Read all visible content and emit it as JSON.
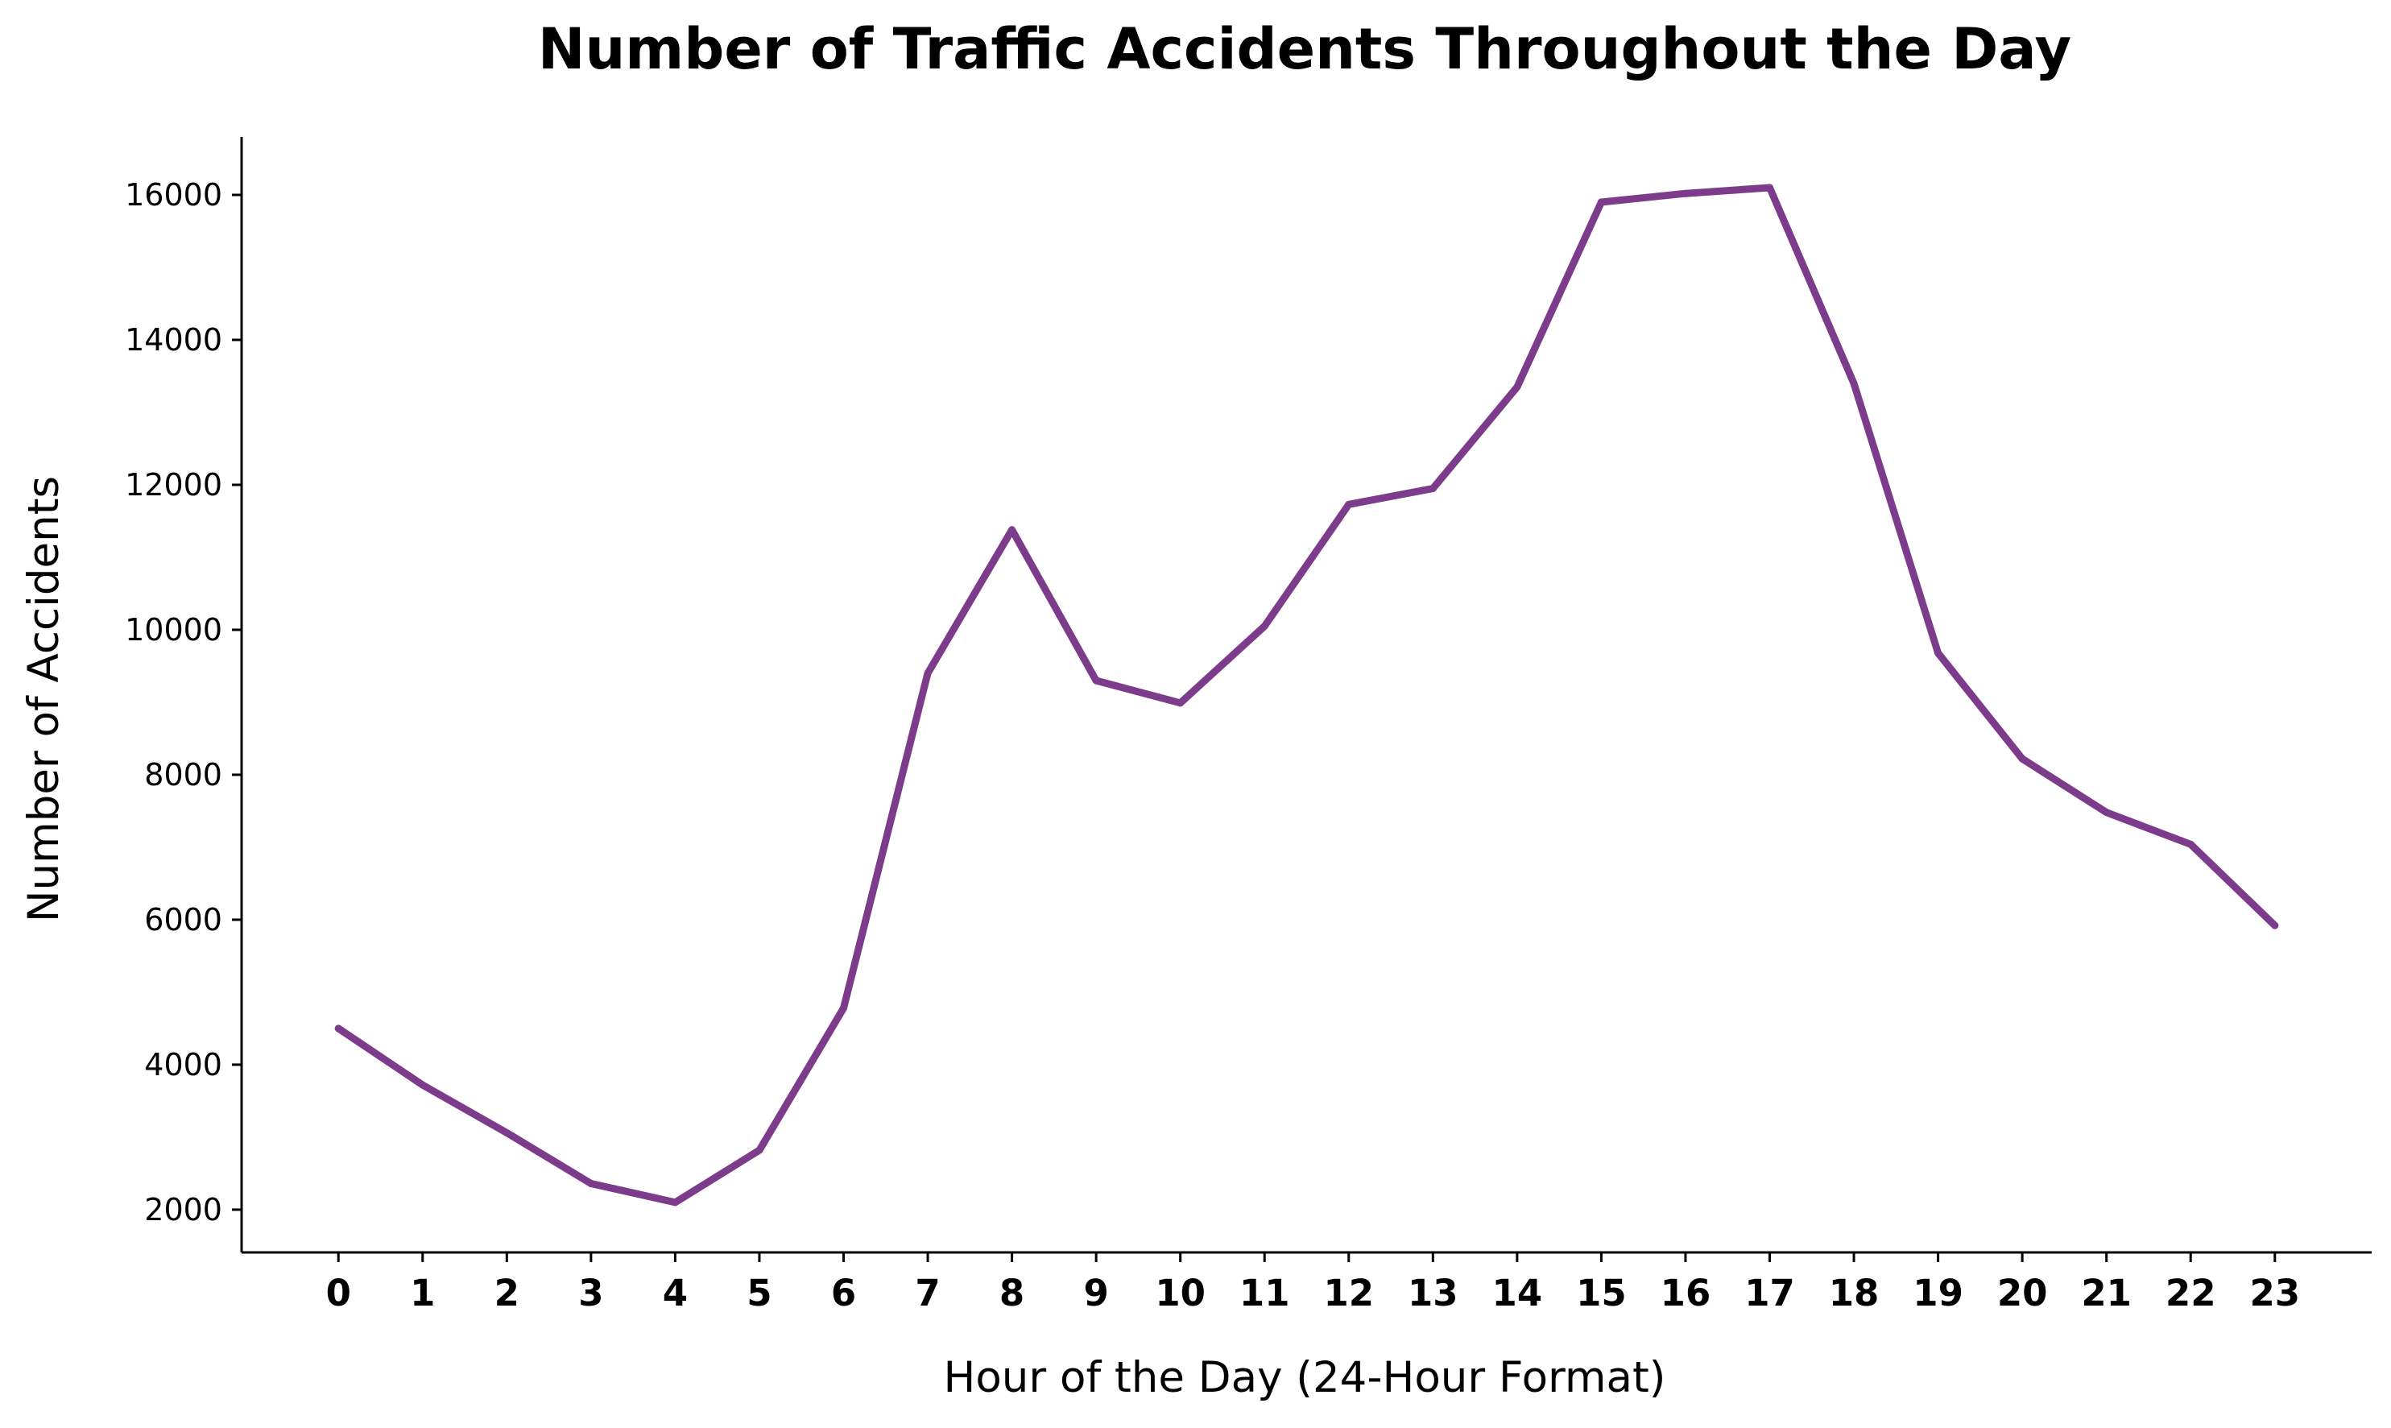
{
  "chart_data": {
    "type": "line",
    "title": "Number of Traffic Accidents Throughout the Day",
    "xlabel": "Hour of the Day (24-Hour Format)",
    "ylabel": "Number of Accidents",
    "x": [
      0,
      1,
      2,
      3,
      4,
      5,
      6,
      7,
      8,
      9,
      10,
      11,
      12,
      13,
      14,
      15,
      16,
      17,
      18,
      19,
      20,
      21,
      22,
      23
    ],
    "xtick_labels": [
      "0",
      "1",
      "2",
      "3",
      "4",
      "5",
      "6",
      "7",
      "8",
      "9",
      "10",
      "11",
      "12",
      "13",
      "14",
      "15",
      "16",
      "17",
      "18",
      "19",
      "20",
      "21",
      "22",
      "23"
    ],
    "series": [
      {
        "color": "#7d3c8b",
        "values": [
          4500,
          3720,
          3060,
          2360,
          2100,
          2820,
          4780,
          9400,
          11380,
          9300,
          8990,
          10050,
          11730,
          11950,
          13350,
          15900,
          16020,
          16100,
          13400,
          9680,
          8220,
          7480,
          7040,
          5920
        ]
      }
    ],
    "yticks": [
      2000,
      4000,
      6000,
      8000,
      10000,
      12000,
      14000,
      16000
    ],
    "ytick_labels": [
      "2000",
      "4000",
      "6000",
      "8000",
      "10000",
      "12000",
      "14000",
      "16000"
    ],
    "xlim": [
      -1.15,
      24.15
    ],
    "ylim": [
      1410,
      16800
    ],
    "grid": false,
    "legend": "none",
    "spines": "left-bottom"
  }
}
